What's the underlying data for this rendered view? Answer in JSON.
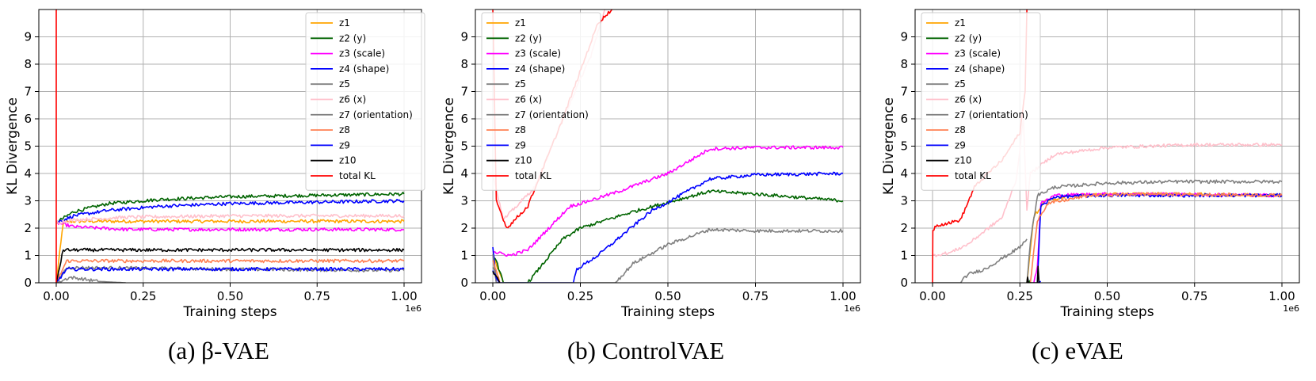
{
  "chart_data": [
    {
      "type": "line",
      "caption": "(a) β-VAE",
      "xlabel": "Training steps",
      "ylabel": "KL Divergence",
      "x_scale_label": "1e6",
      "xlim": [
        0,
        1.0
      ],
      "ylim": [
        0,
        10
      ],
      "xticks": [
        "0.00",
        "0.25",
        "0.50",
        "0.75",
        "1.00"
      ],
      "yticks": [
        "0",
        "1",
        "2",
        "3",
        "4",
        "5",
        "6",
        "7",
        "8",
        "9"
      ],
      "grid": true,
      "legend_position": "top-right",
      "series": [
        {
          "name": "z1",
          "color": "#ffa500",
          "x": [
            0.0,
            0.02,
            0.05,
            0.3,
            0.6,
            1.0
          ],
          "y": [
            0.0,
            2.2,
            2.25,
            2.25,
            2.25,
            2.25
          ]
        },
        {
          "name": "z2 (y)",
          "color": "#006400",
          "x": [
            0.0,
            0.05,
            0.15,
            0.3,
            0.5,
            0.75,
            1.0
          ],
          "y": [
            2.2,
            2.6,
            2.9,
            3.05,
            3.15,
            3.2,
            3.25
          ]
        },
        {
          "name": "z3 (scale)",
          "color": "#ff00ff",
          "x": [
            0.0,
            0.05,
            0.2,
            0.5,
            1.0
          ],
          "y": [
            2.2,
            2.05,
            1.95,
            1.95,
            1.95
          ]
        },
        {
          "name": "z4 (shape)",
          "color": "#0000ff",
          "x": [
            0.0,
            0.05,
            0.15,
            0.3,
            0.5,
            0.75,
            1.0
          ],
          "y": [
            2.2,
            2.45,
            2.65,
            2.8,
            2.9,
            2.95,
            3.0
          ]
        },
        {
          "name": "z5",
          "color": "#808080",
          "x": [
            0.0,
            0.04,
            0.07,
            0.12,
            0.2
          ],
          "y": [
            0.0,
            0.2,
            0.15,
            0.05,
            0.0
          ]
        },
        {
          "name": "z6 (x)",
          "color": "#ffc0cb",
          "x": [
            0.0,
            0.05,
            0.2,
            0.5,
            1.0
          ],
          "y": [
            2.2,
            2.3,
            2.4,
            2.45,
            2.45
          ]
        },
        {
          "name": "z7 (orientation)",
          "color": "#7f7f7f",
          "x": [
            0.0,
            0.03,
            0.1,
            0.5,
            1.0
          ],
          "y": [
            0.0,
            0.55,
            0.55,
            0.5,
            0.45
          ]
        },
        {
          "name": "z8",
          "color": "#ff7f50",
          "x": [
            0.0,
            0.03,
            0.1,
            0.5,
            1.0
          ],
          "y": [
            0.0,
            0.8,
            0.8,
            0.8,
            0.8
          ]
        },
        {
          "name": "z9",
          "color": "#0000ff",
          "x": [
            0.0,
            0.03,
            0.1,
            0.5,
            1.0
          ],
          "y": [
            0.0,
            0.5,
            0.5,
            0.5,
            0.5
          ]
        },
        {
          "name": "z10",
          "color": "#000000",
          "x": [
            0.0,
            0.02,
            0.1,
            0.5,
            1.0
          ],
          "y": [
            0.0,
            1.2,
            1.2,
            1.2,
            1.2
          ]
        },
        {
          "name": "total KL",
          "color": "#ff0000",
          "x": [
            0.0,
            0.0,
            0.001
          ],
          "y": [
            0.0,
            10.0,
            10.0
          ]
        }
      ]
    },
    {
      "type": "line",
      "caption": "(b) ControlVAE",
      "xlabel": "Training steps",
      "ylabel": "KL Divergence",
      "x_scale_label": "1e6",
      "xlim": [
        0,
        1.0
      ],
      "ylim": [
        0,
        10
      ],
      "xticks": [
        "0.00",
        "0.25",
        "0.50",
        "0.75",
        "1.00"
      ],
      "yticks": [
        "0",
        "1",
        "2",
        "3",
        "4",
        "5",
        "6",
        "7",
        "8",
        "9"
      ],
      "grid": true,
      "legend_position": "top-left",
      "series": [
        {
          "name": "z1",
          "color": "#ffa500",
          "x": [
            0.0,
            0.01,
            0.02,
            0.03
          ],
          "y": [
            1.0,
            0.7,
            0.3,
            0.0
          ]
        },
        {
          "name": "z2 (y)",
          "color": "#006400",
          "x": [
            0.0,
            0.01,
            0.03,
            0.1,
            0.2,
            0.25,
            0.4,
            0.62,
            0.75,
            1.0
          ],
          "y": [
            1.0,
            0.8,
            0.0,
            0.0,
            1.6,
            2.0,
            2.6,
            3.35,
            3.25,
            3.0
          ]
        },
        {
          "name": "z3 (scale)",
          "color": "#ff00ff",
          "x": [
            0.0,
            0.01,
            0.05,
            0.1,
            0.22,
            0.25,
            0.35,
            0.5,
            0.62,
            0.75,
            1.0
          ],
          "y": [
            1.2,
            1.1,
            1.0,
            1.2,
            2.8,
            2.9,
            3.3,
            4.0,
            4.9,
            4.95,
            4.95
          ]
        },
        {
          "name": "z4 (shape)",
          "color": "#0000ff",
          "x": [
            0.0,
            0.01,
            0.23,
            0.24,
            0.3,
            0.45,
            0.62,
            0.75,
            1.0
          ],
          "y": [
            1.3,
            0.0,
            0.0,
            0.5,
            1.0,
            2.6,
            3.8,
            3.95,
            4.0
          ]
        },
        {
          "name": "z5",
          "color": "#808080",
          "x": [
            0.0,
            0.01,
            0.35,
            0.4,
            0.5,
            0.62,
            0.75,
            1.0
          ],
          "y": [
            1.0,
            0.0,
            0.0,
            0.7,
            1.4,
            1.95,
            1.9,
            1.9
          ]
        },
        {
          "name": "z6 (x)",
          "color": "#ffc0cb",
          "x": [
            0.0,
            0.03,
            0.12,
            0.2,
            0.28,
            0.32
          ],
          "y": [
            4.0,
            2.3,
            3.5,
            6.0,
            8.3,
            10.0
          ]
        },
        {
          "name": "z7 (orientation)",
          "color": "#7f7f7f",
          "x": [
            0.0,
            0.01,
            0.02
          ],
          "y": [
            0.6,
            0.3,
            0.0
          ]
        },
        {
          "name": "z8",
          "color": "#ff7f50",
          "x": [
            0.0,
            0.01,
            0.02
          ],
          "y": [
            0.8,
            0.4,
            0.0
          ]
        },
        {
          "name": "z9",
          "color": "#0000ff",
          "x": [
            0.0,
            0.01,
            0.02
          ],
          "y": [
            0.5,
            0.2,
            0.0
          ]
        },
        {
          "name": "z10",
          "color": "#000000",
          "x": [
            0.0,
            0.01,
            0.02
          ],
          "y": [
            0.4,
            0.2,
            0.0
          ]
        },
        {
          "name": "total KL",
          "color": "#ff0000",
          "x": [
            0.0,
            0.01,
            0.04,
            0.1,
            0.2,
            0.3,
            0.34
          ],
          "y": [
            10.0,
            3.0,
            2.0,
            2.8,
            6.0,
            9.5,
            10.0
          ]
        }
      ]
    },
    {
      "type": "line",
      "caption": "(c) eVAE",
      "xlabel": "Training steps",
      "ylabel": "KL Divergence",
      "x_scale_label": "1e6",
      "xlim": [
        0,
        1.0
      ],
      "ylim": [
        0,
        10
      ],
      "xticks": [
        "0.00",
        "0.25",
        "0.50",
        "0.75",
        "1.00"
      ],
      "yticks": [
        "0",
        "1",
        "2",
        "3",
        "4",
        "5",
        "6",
        "7",
        "8",
        "9"
      ],
      "grid": true,
      "legend_position": "top-left",
      "series": [
        {
          "name": "z1",
          "color": "#ffa500",
          "x": [
            0.27,
            0.29,
            0.32,
            0.4,
            0.6,
            1.0
          ],
          "y": [
            0.0,
            2.4,
            3.0,
            3.2,
            3.25,
            3.2
          ]
        },
        {
          "name": "z2 (y)",
          "color": "#006400",
          "x": [
            0.27,
            0.28
          ],
          "y": [
            0.0,
            0.1
          ]
        },
        {
          "name": "z3 (scale)",
          "color": "#ff00ff",
          "x": [
            0.29,
            0.3,
            0.31,
            0.35,
            0.5,
            1.0
          ],
          "y": [
            0.0,
            0.6,
            2.9,
            3.2,
            3.25,
            3.2
          ]
        },
        {
          "name": "z4 (shape)",
          "color": "#0000ff",
          "x": [
            0.3,
            0.31,
            0.35,
            0.5,
            1.0
          ],
          "y": [
            0.0,
            2.8,
            3.15,
            3.2,
            3.2
          ]
        },
        {
          "name": "z5",
          "color": "#808080",
          "x": [
            0.27,
            0.28,
            0.3,
            0.35,
            0.5,
            0.7,
            1.0
          ],
          "y": [
            0.0,
            1.5,
            3.2,
            3.5,
            3.65,
            3.7,
            3.7
          ]
        },
        {
          "name": "z6 (x)",
          "color": "#ffc0cb",
          "x": [
            0.0,
            0.05,
            0.1,
            0.15,
            0.2,
            0.24,
            0.26,
            0.27,
            0.28,
            0.35,
            0.5,
            0.75,
            1.0
          ],
          "y": [
            1.0,
            1.1,
            1.4,
            1.9,
            2.4,
            3.8,
            6.0,
            2.7,
            4.0,
            4.7,
            4.95,
            5.05,
            5.05
          ]
        },
        {
          "name": "z7 (orientation)",
          "color": "#7f7f7f",
          "x": [
            0.0,
            0.08,
            0.1,
            0.15,
            0.2,
            0.25,
            0.27
          ],
          "y": [
            0.0,
            0.0,
            0.3,
            0.5,
            0.9,
            1.3,
            1.6
          ]
        },
        {
          "name": "z8",
          "color": "#ff7f50",
          "x": [
            0.28,
            0.3,
            0.33,
            0.45,
            0.6,
            1.0
          ],
          "y": [
            0.0,
            2.3,
            2.9,
            3.2,
            3.25,
            3.2
          ]
        },
        {
          "name": "z9",
          "color": "#0000ff",
          "x": [
            0.3,
            0.31
          ],
          "y": [
            0.0,
            0.05
          ]
        },
        {
          "name": "z10",
          "color": "#000000",
          "x": [
            0.27,
            0.272,
            0.275,
            0.3,
            0.302,
            0.305
          ],
          "y": [
            0.0,
            0.2,
            0.0,
            0.0,
            0.6,
            0.0
          ]
        },
        {
          "name": "total KL",
          "color": "#ff0000",
          "x": [
            0.0,
            0.001,
            0.01,
            0.05,
            0.08,
            0.12,
            0.15,
            0.2,
            0.25,
            0.265,
            0.27
          ],
          "y": [
            0.0,
            1.9,
            2.1,
            2.2,
            2.3,
            3.5,
            3.9,
            4.5,
            5.5,
            7.0,
            10.0
          ]
        }
      ]
    }
  ]
}
